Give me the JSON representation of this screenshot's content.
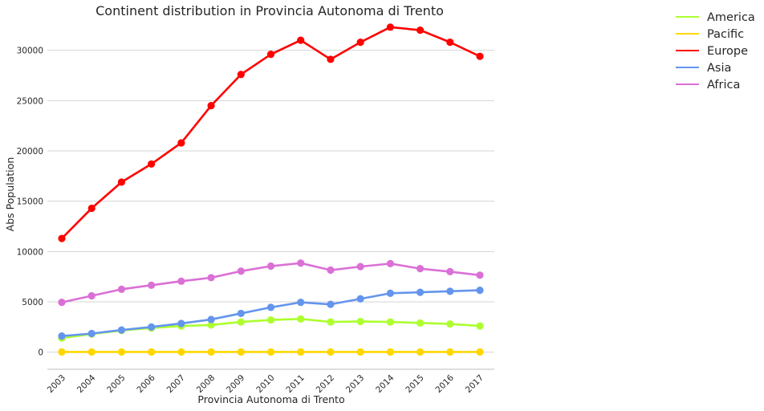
{
  "chart_data": {
    "type": "line",
    "title": "Continent distribution in Provincia Autonoma di Trento",
    "xlabel": "Provincia Autonoma di Trento",
    "ylabel": "Abs Population",
    "categories": [
      "2003",
      "2004",
      "2005",
      "2006",
      "2007",
      "2008",
      "2009",
      "2010",
      "2011",
      "2012",
      "2013",
      "2014",
      "2015",
      "2016",
      "2017"
    ],
    "ylim": [
      -1700,
      34200
    ],
    "yticks": [
      0,
      5000,
      10000,
      15000,
      20000,
      25000,
      30000
    ],
    "grid": "horizontal",
    "legend_position": "outside-top-right",
    "series": [
      {
        "name": "America",
        "color": "#adff2f",
        "values": [
          1400,
          1800,
          2150,
          2400,
          2600,
          2700,
          3000,
          3200,
          3300,
          3000,
          3050,
          3000,
          2900,
          2800,
          2600
        ]
      },
      {
        "name": "Pacific",
        "color": "#ffd700",
        "values": [
          20,
          20,
          20,
          20,
          20,
          20,
          20,
          20,
          20,
          20,
          20,
          20,
          20,
          20,
          20
        ]
      },
      {
        "name": "Europe",
        "color": "#ff0000",
        "values": [
          11300,
          14300,
          16900,
          18700,
          20800,
          24500,
          27600,
          29600,
          31000,
          29100,
          30800,
          32300,
          32000,
          30800,
          29400
        ]
      },
      {
        "name": "Asia",
        "color": "#6495ed",
        "values": [
          1600,
          1850,
          2200,
          2500,
          2850,
          3250,
          3850,
          4450,
          4950,
          4750,
          5300,
          5850,
          5950,
          6050,
          6150
        ]
      },
      {
        "name": "Africa",
        "color": "#da70d6",
        "values": [
          4950,
          5600,
          6250,
          6650,
          7050,
          7400,
          8050,
          8550,
          8850,
          8150,
          8500,
          8800,
          8300,
          8000,
          7650
        ]
      }
    ]
  }
}
